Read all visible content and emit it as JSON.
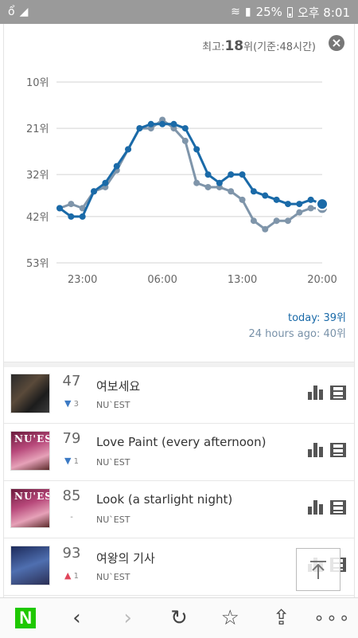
{
  "status_bar": {
    "battery": "25%",
    "clock": "오후 8:01",
    "icons": [
      "owl-icon",
      "wifi-icon",
      "signal-icon",
      "battery-icon"
    ]
  },
  "chart_panel": {
    "best_label": "최고:",
    "best_value": "18",
    "best_suffix": "위(기준:48시간)",
    "close_icon": "close-icon",
    "today_label": "today: 39위",
    "ago_label": "24 hours ago: 40위",
    "colors": {
      "today": "#1a6aa8",
      "ago": "#7f95aa",
      "grid": "#d3d3d3"
    }
  },
  "chart_data": {
    "type": "line",
    "title": "",
    "xlabel": "",
    "ylabel": "",
    "ylim": [
      53,
      8
    ],
    "y_axis_inverted": true,
    "y_ticks": [
      "10위",
      "21위",
      "32위",
      "42위",
      "53위"
    ],
    "y_tick_values": [
      10,
      21,
      32,
      42,
      53
    ],
    "x_ticks": [
      "23:00",
      "06:00",
      "13:00",
      "20:00"
    ],
    "x_tick_index": [
      2,
      9,
      16,
      23
    ],
    "x": [
      0,
      1,
      2,
      3,
      4,
      5,
      6,
      7,
      8,
      9,
      10,
      11,
      12,
      13,
      14,
      15,
      16,
      17,
      18,
      19,
      20,
      21,
      22,
      23
    ],
    "series": [
      {
        "values": [
          40,
          42,
          42,
          36,
          34,
          30,
          26,
          21,
          20,
          20,
          20,
          21,
          26,
          32,
          34,
          32,
          32,
          36,
          37,
          38,
          39,
          39,
          38,
          39
        ]
      },
      {
        "values": [
          40,
          39,
          40,
          36,
          35,
          31,
          26,
          21,
          21,
          19,
          21,
          24,
          34,
          35,
          35,
          36,
          38,
          43,
          45,
          43,
          43,
          41,
          40,
          40
        ]
      }
    ]
  },
  "songs": [
    {
      "rank": "47",
      "change_dir": "down",
      "change": "3",
      "title": "여보세요",
      "artist": "NU`EST",
      "art": "dark",
      "art_text": ""
    },
    {
      "rank": "79",
      "change_dir": "down",
      "change": "1",
      "title": "Love Paint (every afternoon)",
      "artist": "NU`EST",
      "art": "pink",
      "art_text": "NU'EST"
    },
    {
      "rank": "85",
      "change_dir": "same",
      "change": "-",
      "title": "Look (a starlight night)",
      "artist": "NU`EST",
      "art": "pink",
      "art_text": "NU'EST"
    },
    {
      "rank": "93",
      "change_dir": "up",
      "change": "1",
      "title": "여왕의 기사",
      "artist": "NU`EST",
      "art": "blue",
      "art_text": ""
    }
  ],
  "song_action_icons": [
    "chart-bars-icon",
    "video-film-icon"
  ],
  "bottom_nav": [
    "naver-home-icon",
    "back-arrow-icon",
    "forward-arrow-icon",
    "refresh-icon",
    "bookmark-star-icon",
    "share-icon",
    "more-dots-icon"
  ]
}
